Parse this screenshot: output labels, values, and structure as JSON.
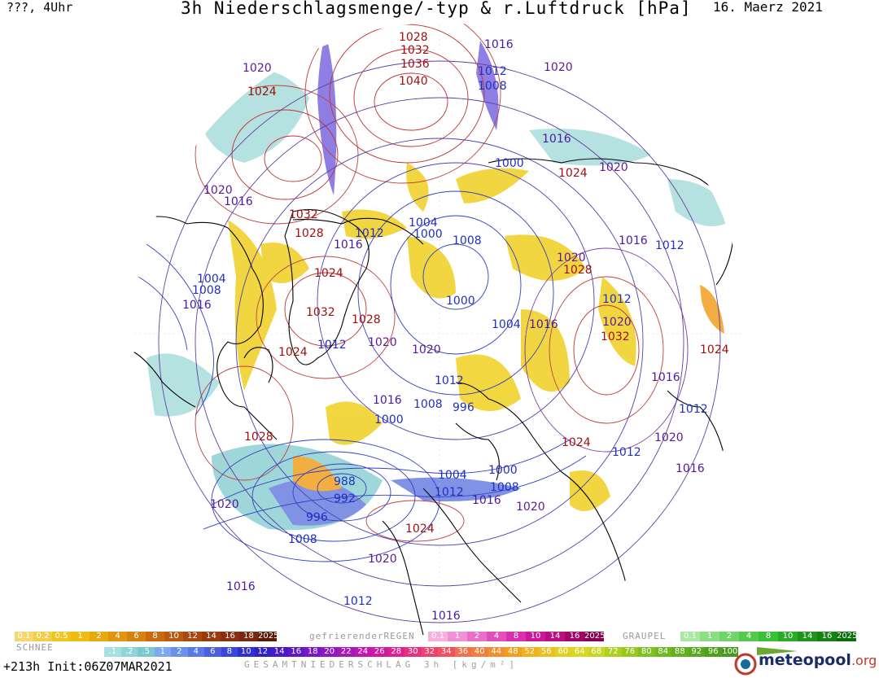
{
  "header": {
    "left": "???, 4Uhr",
    "title": "3h Niederschlagsmenge/-typ & r.Luftdruck [hPa]",
    "date": "16. Maerz 2021"
  },
  "map": {
    "pressure_labels": [
      {
        "v": "1028",
        "c": "#a01010"
      },
      {
        "v": "1032",
        "c": "#a01010"
      },
      {
        "v": "1036",
        "c": "#a01010"
      },
      {
        "v": "1040",
        "c": "#a01010"
      },
      {
        "v": "1016",
        "c": "#4a1aa0"
      },
      {
        "v": "1012",
        "c": "#2030c0"
      },
      {
        "v": "1008",
        "c": "#2030c0"
      },
      {
        "v": "1020",
        "c": "#5a1a9a"
      },
      {
        "v": "1020",
        "c": "#5a1a9a"
      },
      {
        "v": "1024",
        "c": "#a01010"
      },
      {
        "v": "1016",
        "c": "#4a1aa0"
      },
      {
        "v": "1000",
        "c": "#2030c0"
      },
      {
        "v": "1024",
        "c": "#a01010"
      },
      {
        "v": "1020",
        "c": "#5a1a9a"
      },
      {
        "v": "1020",
        "c": "#5a1a9a"
      },
      {
        "v": "1016",
        "c": "#4a1aa0"
      },
      {
        "v": "1032",
        "c": "#a01010"
      },
      {
        "v": "1028",
        "c": "#a01010"
      },
      {
        "v": "1016",
        "c": "#4a1aa0"
      },
      {
        "v": "1012",
        "c": "#2030c0"
      },
      {
        "v": "1004",
        "c": "#2030c0"
      },
      {
        "v": "1000",
        "c": "#2030c0"
      },
      {
        "v": "1008",
        "c": "#2030c0"
      },
      {
        "v": "1016",
        "c": "#4a1aa0"
      },
      {
        "v": "1012",
        "c": "#2030c0"
      },
      {
        "v": "1020",
        "c": "#5a1a9a"
      },
      {
        "v": "1028",
        "c": "#a01010"
      },
      {
        "v": "1004",
        "c": "#2030c0"
      },
      {
        "v": "1024",
        "c": "#a01010"
      },
      {
        "v": "1008",
        "c": "#2030c0"
      },
      {
        "v": "1016",
        "c": "#4a1aa0"
      },
      {
        "v": "1032",
        "c": "#a01010"
      },
      {
        "v": "1000",
        "c": "#2030c0"
      },
      {
        "v": "1028",
        "c": "#a01010"
      },
      {
        "v": "1004",
        "c": "#2030c0"
      },
      {
        "v": "1016",
        "c": "#4a1aa0"
      },
      {
        "v": "1012",
        "c": "#2030c0"
      },
      {
        "v": "1020",
        "c": "#5a1a9a"
      },
      {
        "v": "1032",
        "c": "#a01010"
      },
      {
        "v": "1024",
        "c": "#a01010"
      },
      {
        "v": "1012",
        "c": "#2030c0"
      },
      {
        "v": "1020",
        "c": "#5a1a9a"
      },
      {
        "v": "1020",
        "c": "#5a1a9a"
      },
      {
        "v": "1024",
        "c": "#a01010"
      },
      {
        "v": "1012",
        "c": "#2030c0"
      },
      {
        "v": "1016",
        "c": "#4a1aa0"
      },
      {
        "v": "1016",
        "c": "#4a1aa0"
      },
      {
        "v": "1008",
        "c": "#2030c0"
      },
      {
        "v": "996",
        "c": "#2030c0"
      },
      {
        "v": "1012",
        "c": "#2030c0"
      },
      {
        "v": "1000",
        "c": "#2030c0"
      },
      {
        "v": "1028",
        "c": "#a01010"
      },
      {
        "v": "1024",
        "c": "#a01010"
      },
      {
        "v": "1012",
        "c": "#2030c0"
      },
      {
        "v": "1020",
        "c": "#5a1a9a"
      },
      {
        "v": "1016",
        "c": "#4a1aa0"
      },
      {
        "v": "988",
        "c": "#2030c0"
      },
      {
        "v": "992",
        "c": "#2030c0"
      },
      {
        "v": "1004",
        "c": "#2030c0"
      },
      {
        "v": "1000",
        "c": "#2030c0"
      },
      {
        "v": "1008",
        "c": "#2030c0"
      },
      {
        "v": "1012",
        "c": "#2030c0"
      },
      {
        "v": "1016",
        "c": "#4a1aa0"
      },
      {
        "v": "1020",
        "c": "#5a1a9a"
      },
      {
        "v": "1020",
        "c": "#5a1a9a"
      },
      {
        "v": "996",
        "c": "#2030c0"
      },
      {
        "v": "1008",
        "c": "#2030c0"
      },
      {
        "v": "1024",
        "c": "#a01010"
      },
      {
        "v": "1020",
        "c": "#5a1a9a"
      },
      {
        "v": "1016",
        "c": "#4a1aa0"
      },
      {
        "v": "1012",
        "c": "#2030c0"
      },
      {
        "v": "1016",
        "c": "#4a1aa0"
      }
    ]
  },
  "legend": {
    "snow_label": "SCHNEE",
    "snow": [
      "0.1",
      "0.2",
      "0.5",
      "1",
      "2",
      "4",
      "6",
      "8",
      "10",
      "12",
      "14",
      "16",
      "18",
      "2025+"
    ],
    "rain_label": "gefrierenderREGEN",
    "rain": [
      "0.1",
      "1",
      "2",
      "4",
      "8",
      "10",
      "14",
      "16",
      "2025+"
    ],
    "graupel_label": "GRAUPEL",
    "graupel": [
      "0.1",
      "1",
      "2",
      "4",
      "8",
      "10",
      "14",
      "16",
      "2025+"
    ],
    "total": [
      ".1",
      ".2",
      ".5",
      "1",
      "2",
      "4",
      "6",
      "8",
      "10",
      "12",
      "14",
      "16",
      "18",
      "20",
      "22",
      "24",
      "26",
      "28",
      "30",
      "32",
      "34",
      "36",
      "40",
      "44",
      "48",
      "52",
      "56",
      "60",
      "64",
      "68",
      "72",
      "76",
      "80",
      "84",
      "88",
      "92",
      "96",
      "100"
    ]
  },
  "footer": {
    "run": "+213h  Init:06Z07MAR2021",
    "total_label": "GESAMTNIEDERSCHLAG 3h [kg/m²]",
    "brand": "meteopool",
    "brand_tld": ".org"
  }
}
